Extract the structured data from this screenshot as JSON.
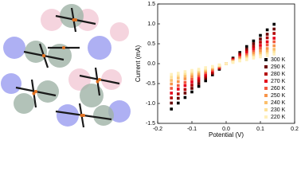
{
  "chart_data": {
    "type": "scatter",
    "xlabel": "Potential (V)",
    "ylabel": "Current (mA)",
    "x": [
      -0.16,
      -0.14,
      -0.12,
      -0.1,
      -0.08,
      -0.06,
      -0.04,
      -0.02,
      0,
      0.02,
      0.04,
      0.06,
      0.08,
      0.1,
      0.12,
      0.14
    ],
    "series": [
      {
        "name": "300 K",
        "color": "#000000",
        "values": [
          -1.14,
          -0.99,
          -0.85,
          -0.71,
          -0.57,
          -0.43,
          -0.28,
          -0.14,
          0,
          0.14,
          0.28,
          0.43,
          0.57,
          0.71,
          0.85,
          0.99
        ]
      },
      {
        "name": "290 K",
        "color": "#6b0000",
        "values": [
          -0.99,
          -0.87,
          -0.74,
          -0.62,
          -0.5,
          -0.37,
          -0.25,
          -0.12,
          0,
          0.12,
          0.25,
          0.37,
          0.5,
          0.62,
          0.74,
          0.87
        ]
      },
      {
        "name": "280 K",
        "color": "#b30000",
        "values": [
          -0.86,
          -0.76,
          -0.65,
          -0.54,
          -0.43,
          -0.32,
          -0.22,
          -0.11,
          0,
          0.11,
          0.22,
          0.32,
          0.43,
          0.54,
          0.65,
          0.76
        ]
      },
      {
        "name": "270 K",
        "color": "#e6001a",
        "values": [
          -0.74,
          -0.64,
          -0.55,
          -0.46,
          -0.37,
          -0.28,
          -0.18,
          -0.09,
          0,
          0.09,
          0.18,
          0.28,
          0.37,
          0.46,
          0.55,
          0.64
        ]
      },
      {
        "name": "260 K",
        "color": "#f2593f",
        "values": [
          -0.62,
          -0.55,
          -0.47,
          -0.39,
          -0.31,
          -0.23,
          -0.16,
          -0.08,
          0,
          0.08,
          0.16,
          0.23,
          0.31,
          0.39,
          0.47,
          0.55
        ]
      },
      {
        "name": "250 K",
        "color": "#f7944a",
        "values": [
          -0.51,
          -0.45,
          -0.38,
          -0.32,
          -0.26,
          -0.19,
          -0.13,
          -0.06,
          0,
          0.06,
          0.13,
          0.19,
          0.26,
          0.32,
          0.38,
          0.45
        ]
      },
      {
        "name": "240 K",
        "color": "#fbbf6b",
        "values": [
          -0.42,
          -0.36,
          -0.31,
          -0.26,
          -0.21,
          -0.16,
          -0.1,
          -0.05,
          0,
          0.05,
          0.1,
          0.16,
          0.21,
          0.26,
          0.31,
          0.36
        ]
      },
      {
        "name": "230 K",
        "color": "#fde29a",
        "values": [
          -0.34,
          -0.29,
          -0.25,
          -0.21,
          -0.17,
          -0.13,
          -0.08,
          -0.04,
          0,
          0.04,
          0.08,
          0.13,
          0.17,
          0.21,
          0.25,
          0.29
        ]
      },
      {
        "name": "220 K",
        "color": "#fff0bb",
        "values": [
          -0.27,
          -0.24,
          -0.2,
          -0.17,
          -0.14,
          -0.1,
          -0.07,
          -0.03,
          0,
          0.03,
          0.07,
          0.1,
          0.14,
          0.17,
          0.2,
          0.24
        ]
      }
    ],
    "xlim": [
      -0.2,
      0.2
    ],
    "xticks": [
      -0.2,
      -0.1,
      {
        "value": 0,
        "label": "0.0"
      },
      0.1,
      0.2
    ],
    "ylim": [
      -1.5,
      1.5
    ],
    "yticks": [
      -1.5,
      {
        "value": -1,
        "label": "-1.0"
      },
      -0.5,
      {
        "value": 0,
        "label": "0.0"
      },
      0.5,
      {
        "value": 1,
        "label": "1.0"
      },
      1.5
    ],
    "grid": false,
    "legend": "lower right"
  }
}
